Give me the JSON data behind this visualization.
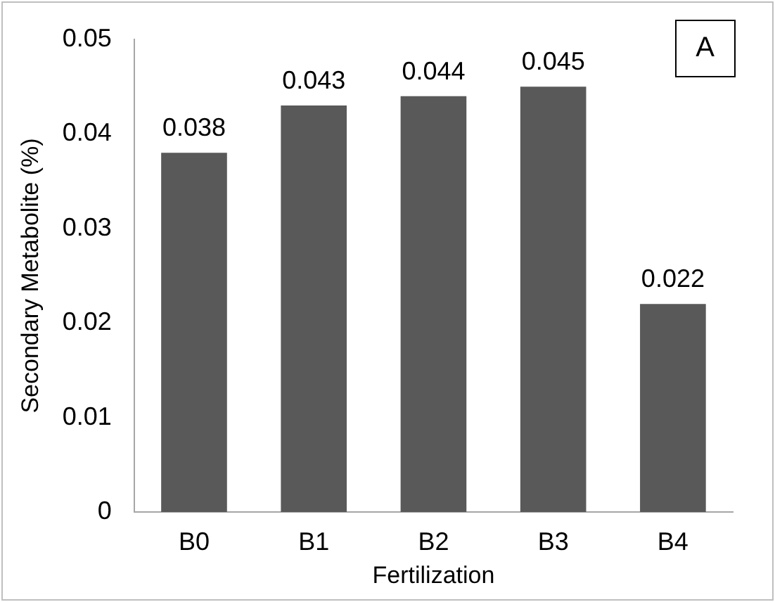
{
  "chart_data": {
    "type": "bar",
    "xlabel": "Fertilization",
    "ylabel": "Secondary Metabolite (%)",
    "categories": [
      "B0",
      "B1",
      "B2",
      "B3",
      "B4"
    ],
    "values": [
      0.038,
      0.043,
      0.044,
      0.045,
      0.022
    ],
    "color": "#595959",
    "ylim": [
      0,
      0.05
    ],
    "yticks": [
      0,
      0.01,
      0.02,
      0.03,
      0.04,
      0.05
    ],
    "grid": false,
    "data_labels": true,
    "annotations": [
      "A"
    ]
  }
}
